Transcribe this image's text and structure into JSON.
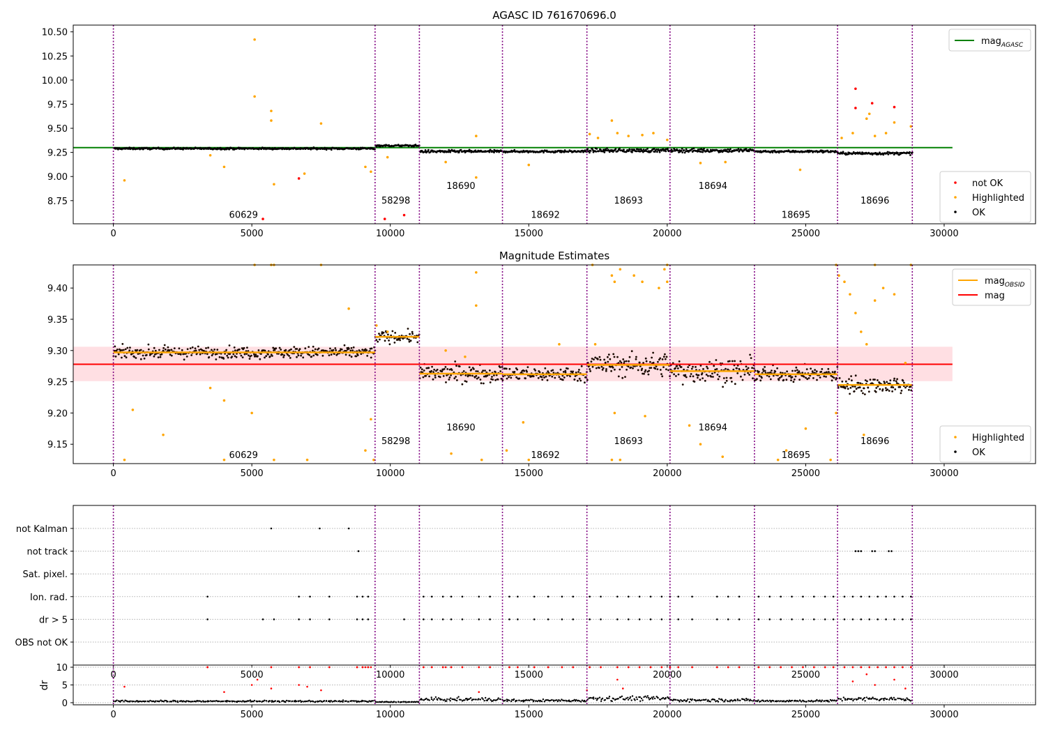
{
  "chart_data": [
    {
      "type": "scatter",
      "title": "AGASC ID 761670696.0",
      "xlim": [
        -1450,
        33300
      ],
      "ylim": [
        8.51,
        10.57
      ],
      "x_ticks": [
        0,
        5000,
        10000,
        15000,
        20000,
        25000,
        30000
      ],
      "y_ticks": [
        8.75,
        9.0,
        9.25,
        9.5,
        9.75,
        10.0,
        10.25,
        10.5
      ],
      "y_tick_labels": [
        "8.75",
        "9.00",
        "9.25",
        "9.50",
        "9.75",
        "10.00",
        "10.25",
        "10.50"
      ],
      "legend_position": "upper-right",
      "legend_lower_position": "lower-right",
      "legend_upper": [
        {
          "label": "mag",
          "sub": "AGASC",
          "color": "#008000",
          "kind": "line"
        }
      ],
      "legend_lower": [
        {
          "label": "not OK",
          "color": "#ff0000",
          "kind": "dot"
        },
        {
          "label": "Highlighted",
          "color": "#ffa500",
          "kind": "dot"
        },
        {
          "label": "OK",
          "color": "#000000",
          "kind": "dot"
        }
      ],
      "reference_line": {
        "value": 9.3,
        "x_range": [
          -1450,
          30300
        ],
        "color": "#008000"
      },
      "obs_boundaries": [
        0,
        9450,
        11050,
        14050,
        17100,
        20100,
        23150,
        26150,
        28850
      ],
      "obsid_labels": [
        {
          "text": "60629",
          "x": 4700,
          "y": 8.57
        },
        {
          "text": "58298",
          "x": 10200,
          "y": 8.72
        },
        {
          "text": "18690",
          "x": 12550,
          "y": 8.87
        },
        {
          "text": "18692",
          "x": 15600,
          "y": 8.57
        },
        {
          "text": "18693",
          "x": 18600,
          "y": 8.72
        },
        {
          "text": "18694",
          "x": 21650,
          "y": 8.87
        },
        {
          "text": "18695",
          "x": 24650,
          "y": 8.57
        },
        {
          "text": "18696",
          "x": 27500,
          "y": 8.72
        }
      ],
      "segments": [
        {
          "x0": 0,
          "x1": 9450,
          "mean": 9.29,
          "spread": 0.012
        },
        {
          "x0": 9450,
          "x1": 11050,
          "mean": 9.32,
          "spread": 0.012
        },
        {
          "x0": 11050,
          "x1": 14050,
          "mean": 9.26,
          "spread": 0.018
        },
        {
          "x0": 14050,
          "x1": 17100,
          "mean": 9.26,
          "spread": 0.015
        },
        {
          "x0": 17100,
          "x1": 20100,
          "mean": 9.27,
          "spread": 0.025
        },
        {
          "x0": 20100,
          "x1": 23150,
          "mean": 9.27,
          "spread": 0.025
        },
        {
          "x0": 23150,
          "x1": 26150,
          "mean": 9.26,
          "spread": 0.015
        },
        {
          "x0": 26150,
          "x1": 28850,
          "mean": 9.24,
          "spread": 0.018
        }
      ],
      "highlighted_points": [
        [
          5100,
          10.42
        ],
        [
          5100,
          9.83
        ],
        [
          5700,
          9.68
        ],
        [
          5700,
          9.58
        ],
        [
          7500,
          9.55
        ],
        [
          6900,
          9.03
        ],
        [
          5800,
          8.92
        ],
        [
          400,
          8.96
        ],
        [
          4000,
          9.1
        ],
        [
          3500,
          9.22
        ],
        [
          9100,
          9.1
        ],
        [
          9300,
          9.05
        ],
        [
          9900,
          9.2
        ],
        [
          13100,
          9.42
        ],
        [
          13100,
          8.99
        ],
        [
          17200,
          9.44
        ],
        [
          18000,
          9.58
        ],
        [
          18200,
          9.45
        ],
        [
          19500,
          9.45
        ],
        [
          20000,
          9.38
        ],
        [
          21200,
          9.14
        ],
        [
          24800,
          9.07
        ],
        [
          27300,
          9.65
        ],
        [
          27200,
          9.6
        ],
        [
          28200,
          9.56
        ],
        [
          28800,
          9.52
        ],
        [
          26700,
          9.45
        ],
        [
          27900,
          9.45
        ],
        [
          26300,
          9.4
        ],
        [
          27500,
          9.42
        ],
        [
          17500,
          9.4
        ],
        [
          18600,
          9.42
        ],
        [
          19100,
          9.43
        ],
        [
          12000,
          9.15
        ],
        [
          15000,
          9.12
        ],
        [
          22100,
          9.15
        ]
      ],
      "notok_points": [
        [
          26800,
          9.91
        ],
        [
          26800,
          9.71
        ],
        [
          27400,
          9.76
        ],
        [
          28200,
          9.72
        ],
        [
          6700,
          8.98
        ],
        [
          5400,
          8.56
        ],
        [
          9800,
          8.56
        ],
        [
          10500,
          8.6
        ]
      ]
    },
    {
      "type": "scatter",
      "title": "Magnitude Estimates",
      "xlim": [
        -1450,
        33300
      ],
      "ylim": [
        9.119,
        9.437
      ],
      "x_ticks": [
        0,
        5000,
        10000,
        15000,
        20000,
        25000,
        30000
      ],
      "y_ticks": [
        9.15,
        9.2,
        9.25,
        9.3,
        9.35,
        9.4
      ],
      "y_tick_labels": [
        "9.15",
        "9.20",
        "9.25",
        "9.30",
        "9.35",
        "9.40"
      ],
      "legend_position": "upper-right",
      "legend_lower_position": "lower-right",
      "legend_upper": [
        {
          "label": "mag",
          "sub": "OBSID",
          "color": "#ffa500",
          "kind": "line"
        },
        {
          "label": "mag",
          "sub": "",
          "color": "#ff0000",
          "kind": "line"
        }
      ],
      "legend_lower": [
        {
          "label": "Highlighted",
          "color": "#ffa500",
          "kind": "dot"
        },
        {
          "label": "OK",
          "color": "#000000",
          "kind": "dot"
        }
      ],
      "mean_line": {
        "value": 9.278,
        "x_range": [
          -1450,
          30300
        ],
        "color": "#ff0000"
      },
      "band": {
        "lower": 9.251,
        "upper": 9.306,
        "color": "#ffc0c8"
      },
      "obs_boundaries": [
        0,
        9450,
        11050,
        14050,
        17100,
        20100,
        23150,
        26150,
        28850
      ],
      "obsid_labels": [
        {
          "text": "60629",
          "x": 4700,
          "y": 9.128
        },
        {
          "text": "58298",
          "x": 10200,
          "y": 9.15
        },
        {
          "text": "18690",
          "x": 12550,
          "y": 9.172
        },
        {
          "text": "18692",
          "x": 15600,
          "y": 9.128
        },
        {
          "text": "18693",
          "x": 18600,
          "y": 9.15
        },
        {
          "text": "18694",
          "x": 21650,
          "y": 9.172
        },
        {
          "text": "18695",
          "x": 24650,
          "y": 9.128
        },
        {
          "text": "18696",
          "x": 27500,
          "y": 9.15
        }
      ],
      "obsid_means": [
        9.297,
        9.322,
        9.263,
        9.262,
        9.277,
        9.267,
        9.262,
        9.245
      ],
      "segments": [
        {
          "x0": 0,
          "x1": 9450,
          "mean": 9.297,
          "spread": 0.012
        },
        {
          "x0": 9450,
          "x1": 11050,
          "mean": 9.322,
          "spread": 0.012
        },
        {
          "x0": 11050,
          "x1": 14050,
          "mean": 9.263,
          "spread": 0.018
        },
        {
          "x0": 14050,
          "x1": 17100,
          "mean": 9.262,
          "spread": 0.015
        },
        {
          "x0": 17100,
          "x1": 20100,
          "mean": 9.277,
          "spread": 0.025
        },
        {
          "x0": 20100,
          "x1": 23150,
          "mean": 9.267,
          "spread": 0.025
        },
        {
          "x0": 23150,
          "x1": 26150,
          "mean": 9.262,
          "spread": 0.015
        },
        {
          "x0": 26150,
          "x1": 28850,
          "mean": 9.245,
          "spread": 0.018
        }
      ],
      "highlighted_points": [
        [
          5800,
          9.437
        ],
        [
          5700,
          9.437
        ],
        [
          7500,
          9.437
        ],
        [
          5100,
          9.437
        ],
        [
          13100,
          9.425
        ],
        [
          13100,
          9.372
        ],
        [
          8500,
          9.367
        ],
        [
          9500,
          9.34
        ],
        [
          9900,
          9.33
        ],
        [
          12000,
          9.3
        ],
        [
          12700,
          9.29
        ],
        [
          16100,
          9.31
        ],
        [
          17400,
          9.31
        ],
        [
          18000,
          9.42
        ],
        [
          18100,
          9.41
        ],
        [
          18300,
          9.43
        ],
        [
          18800,
          9.42
        ],
        [
          19100,
          9.41
        ],
        [
          19700,
          9.4
        ],
        [
          19900,
          9.43
        ],
        [
          20000,
          9.41
        ],
        [
          17300,
          9.437
        ],
        [
          20000,
          9.437
        ],
        [
          26100,
          9.437
        ],
        [
          26400,
          9.41
        ],
        [
          26600,
          9.39
        ],
        [
          26800,
          9.36
        ],
        [
          27000,
          9.33
        ],
        [
          27200,
          9.31
        ],
        [
          27500,
          9.38
        ],
        [
          27800,
          9.4
        ],
        [
          28200,
          9.39
        ],
        [
          28600,
          9.28
        ],
        [
          28800,
          9.437
        ],
        [
          26200,
          9.42
        ],
        [
          27500,
          9.437
        ],
        [
          4000,
          9.22
        ],
        [
          3500,
          9.24
        ],
        [
          700,
          9.205
        ],
        [
          1800,
          9.165
        ],
        [
          5000,
          9.2
        ],
        [
          9300,
          9.19
        ],
        [
          9100,
          9.14
        ],
        [
          12200,
          9.135
        ],
        [
          14800,
          9.185
        ],
        [
          14200,
          9.14
        ],
        [
          18100,
          9.2
        ],
        [
          19200,
          9.195
        ],
        [
          21200,
          9.15
        ],
        [
          20800,
          9.18
        ],
        [
          22000,
          9.13
        ],
        [
          24300,
          9.14
        ],
        [
          25000,
          9.175
        ],
        [
          26100,
          9.2
        ],
        [
          27100,
          9.165
        ],
        [
          400,
          9.125
        ],
        [
          4000,
          9.125
        ],
        [
          5800,
          9.125
        ],
        [
          7000,
          9.125
        ],
        [
          9400,
          9.125
        ],
        [
          13300,
          9.125
        ],
        [
          18000,
          9.125
        ],
        [
          18300,
          9.125
        ],
        [
          24000,
          9.125
        ],
        [
          25900,
          9.125
        ],
        [
          15000,
          9.125
        ]
      ]
    },
    {
      "type": "scatter",
      "xlim": [
        -1450,
        33300
      ],
      "x_ticks": [
        0,
        5000,
        10000,
        15000,
        20000,
        25000,
        30000
      ],
      "flag_labels": [
        "not Kalman",
        "not track",
        "Sat. pixel.",
        "Ion. rad.",
        "dr > 5",
        "OBS not OK"
      ],
      "obs_boundaries": [
        0,
        9450,
        11050,
        14050,
        17100,
        20100,
        23150,
        26150,
        28850
      ],
      "flag_points": {
        "not Kalman": [
          5700,
          7450,
          8500
        ],
        "not track": [
          8850,
          26800,
          26900,
          27000,
          27400,
          27500,
          28000,
          28100
        ],
        "Sat. pixel.": [],
        "Ion. rad.": [
          3400,
          6700,
          7100,
          7800,
          8800,
          9000,
          9200,
          11200,
          11500,
          11900,
          12200,
          12600,
          13200,
          13600,
          14300,
          14600,
          15200,
          15700,
          16200,
          16600,
          17200,
          17600,
          18200,
          18600,
          19000,
          19400,
          19800,
          20100,
          20400,
          20900,
          21800,
          22200,
          22600,
          23300,
          23700,
          24100,
          24500,
          24900,
          25300,
          25700,
          26000,
          26400,
          26700,
          27000,
          27300,
          27600,
          27900,
          28200,
          28500,
          28800
        ],
        "dr > 5": [
          3400,
          5400,
          5800,
          6700,
          7100,
          7800,
          8800,
          9000,
          9200,
          10500,
          11200,
          11500,
          11900,
          12200,
          12600,
          13200,
          13600,
          14300,
          14600,
          15200,
          15700,
          16200,
          16600,
          17200,
          17600,
          18200,
          18600,
          19000,
          19400,
          19800,
          20100,
          20400,
          20900,
          21800,
          22200,
          22600,
          23300,
          23700,
          24100,
          24500,
          24900,
          25300,
          25700,
          26000,
          26400,
          26700,
          27000,
          27300,
          27600,
          27900,
          28200,
          28500,
          28800
        ],
        "OBS not OK": []
      }
    },
    {
      "type": "scatter",
      "ylabel": "dr",
      "xlim": [
        -1450,
        33300
      ],
      "ylim": [
        -0.6,
        10.6
      ],
      "x_ticks": [
        0,
        5000,
        10000,
        15000,
        20000,
        25000,
        30000
      ],
      "x_tick_labels": [
        "0",
        "5000",
        "10000",
        "15000",
        "20000",
        "25000",
        "30000"
      ],
      "y_ticks": [
        0,
        5,
        10
      ],
      "y_tick_labels": [
        "0",
        "5",
        "10"
      ],
      "obs_boundaries": [
        0,
        9450,
        11050,
        14050,
        17100,
        20100,
        23150,
        26150,
        28850
      ],
      "segment_dr": [
        0.4,
        0.2,
        0.9,
        0.6,
        1.2,
        0.7,
        0.5,
        1.0
      ],
      "notok_points": [
        [
          400,
          4.5
        ],
        [
          3400,
          10
        ],
        [
          4000,
          3
        ],
        [
          5000,
          5
        ],
        [
          5200,
          6.5
        ],
        [
          5700,
          4
        ],
        [
          6700,
          5
        ],
        [
          7000,
          4.5
        ],
        [
          7500,
          3.5
        ],
        [
          8800,
          10
        ],
        [
          9100,
          10
        ],
        [
          9300,
          10
        ],
        [
          12000,
          10
        ],
        [
          13200,
          3
        ],
        [
          17100,
          3.5
        ],
        [
          18200,
          6.5
        ],
        [
          18400,
          4
        ],
        [
          26700,
          6
        ],
        [
          27200,
          8
        ],
        [
          27500,
          5
        ],
        [
          28200,
          6.5
        ],
        [
          28600,
          4
        ]
      ],
      "notok_cap_x": [
        3400,
        5700,
        6700,
        7100,
        7800,
        8800,
        9000,
        9200,
        11200,
        11500,
        11900,
        12200,
        12600,
        13200,
        13600,
        14300,
        14600,
        15200,
        15700,
        16200,
        16600,
        17200,
        17600,
        18200,
        18600,
        19000,
        19400,
        19800,
        20100,
        20400,
        20900,
        21800,
        22200,
        22600,
        23300,
        23700,
        24100,
        24500,
        24900,
        25300,
        25700,
        26000,
        26400,
        26700,
        27000,
        27300,
        27600,
        27900,
        28200,
        28500,
        28800
      ]
    }
  ]
}
